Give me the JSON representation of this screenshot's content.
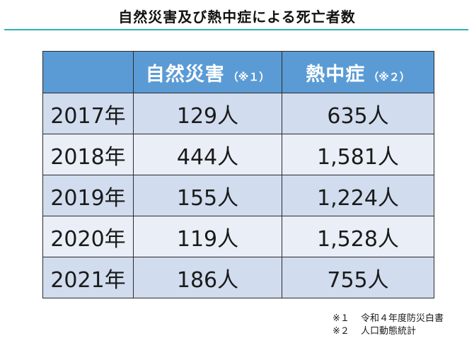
{
  "title": "自然災害及び熱中症による死亡者数",
  "chart_data": {
    "type": "table",
    "columns": [
      {
        "label": "",
        "note": ""
      },
      {
        "label": "自然災害",
        "note": "（※１）"
      },
      {
        "label": "熱中症",
        "note": "（※２）"
      }
    ],
    "rows": [
      {
        "year": "2017年",
        "disaster": "129人",
        "heatstroke": "635人"
      },
      {
        "year": "2018年",
        "disaster": "444人",
        "heatstroke": "1,581人"
      },
      {
        "year": "2019年",
        "disaster": "155人",
        "heatstroke": "1,224人"
      },
      {
        "year": "2020年",
        "disaster": "119人",
        "heatstroke": "1,528人"
      },
      {
        "year": "2021年",
        "disaster": "186人",
        "heatstroke": "755人"
      }
    ]
  },
  "notes": [
    {
      "mark": "※１",
      "text": "令和４年度防災白書"
    },
    {
      "mark": "※２",
      "text": "人口動態統計"
    }
  ],
  "colors": {
    "header_bg": "#5b9bd5",
    "row_dark": "#d1dcee",
    "row_light": "#e9eef7",
    "title_rule": "#2fb3ad"
  }
}
